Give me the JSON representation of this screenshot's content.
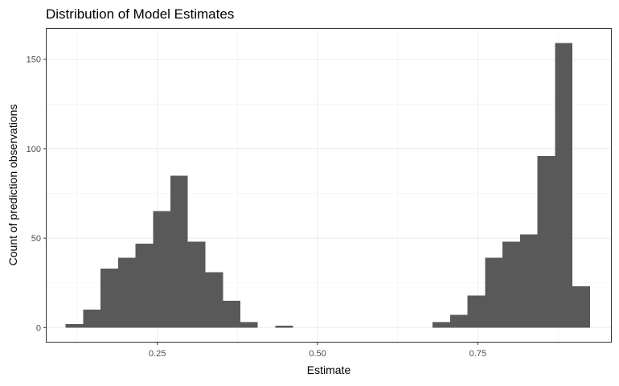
{
  "chart_data": {
    "type": "bar",
    "title": "Distribution of Model Estimates",
    "xlabel": "Estimate",
    "ylabel": "Count of prediction observations",
    "xlim": [
      0.0773,
      0.9577
    ],
    "ylim": [
      -7.95,
      166.95
    ],
    "x_ticks": [
      0.25,
      0.5,
      0.75
    ],
    "x_tick_labels": [
      "0.25",
      "0.50",
      "0.75"
    ],
    "y_ticks": [
      0,
      50,
      100,
      150
    ],
    "y_tick_labels": [
      "0",
      "50",
      "100",
      "150"
    ],
    "grid": true,
    "bar_color": "#595959",
    "bins": [
      {
        "x0": 0.1068,
        "x1": 0.1341,
        "count": 2
      },
      {
        "x0": 0.1341,
        "x1": 0.1614,
        "count": 10
      },
      {
        "x0": 0.1614,
        "x1": 0.1887,
        "count": 33
      },
      {
        "x0": 0.1887,
        "x1": 0.216,
        "count": 39
      },
      {
        "x0": 0.216,
        "x1": 0.2432,
        "count": 47
      },
      {
        "x0": 0.2432,
        "x1": 0.2705,
        "count": 65
      },
      {
        "x0": 0.2705,
        "x1": 0.2977,
        "count": 85
      },
      {
        "x0": 0.2977,
        "x1": 0.325,
        "count": 48
      },
      {
        "x0": 0.325,
        "x1": 0.3523,
        "count": 31
      },
      {
        "x0": 0.3523,
        "x1": 0.3795,
        "count": 15
      },
      {
        "x0": 0.3795,
        "x1": 0.4068,
        "count": 3
      },
      {
        "x0": 0.4068,
        "x1": 0.4341,
        "count": 0
      },
      {
        "x0": 0.4341,
        "x1": 0.4614,
        "count": 1
      },
      {
        "x0": 0.6795,
        "x1": 0.7068,
        "count": 3
      },
      {
        "x0": 0.7068,
        "x1": 0.7341,
        "count": 7
      },
      {
        "x0": 0.7341,
        "x1": 0.7614,
        "count": 18
      },
      {
        "x0": 0.7614,
        "x1": 0.7886,
        "count": 39
      },
      {
        "x0": 0.7886,
        "x1": 0.8159,
        "count": 48
      },
      {
        "x0": 0.8159,
        "x1": 0.8432,
        "count": 52
      },
      {
        "x0": 0.8432,
        "x1": 0.8705,
        "count": 96
      },
      {
        "x0": 0.8705,
        "x1": 0.8977,
        "count": 159
      },
      {
        "x0": 0.8977,
        "x1": 0.925,
        "count": 23
      }
    ]
  }
}
